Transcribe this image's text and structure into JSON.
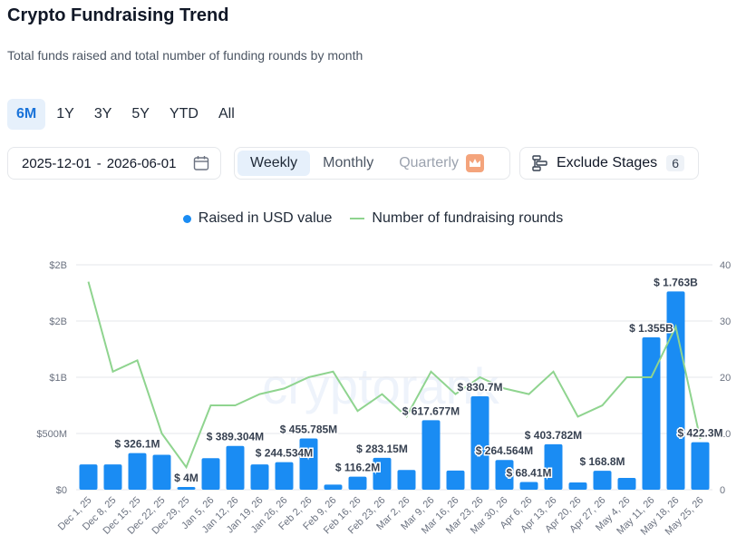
{
  "header": {
    "title": "Crypto Fundraising Trend",
    "subtitle": "Total funds raised and total number of funding rounds by month"
  },
  "ranges": [
    {
      "label": "6M",
      "active": true
    },
    {
      "label": "1Y",
      "active": false
    },
    {
      "label": "3Y",
      "active": false
    },
    {
      "label": "5Y",
      "active": false
    },
    {
      "label": "YTD",
      "active": false
    },
    {
      "label": "All",
      "active": false
    }
  ],
  "date_range": {
    "start": "2025-12-01",
    "sep": "-",
    "end": "2026-06-01",
    "icon": "calendar-icon"
  },
  "period": {
    "weekly": "Weekly",
    "monthly": "Monthly",
    "quarterly": "Quarterly",
    "selected": "Weekly",
    "premium_icon": "crown-icon"
  },
  "exclude": {
    "label": "Exclude Stages",
    "count": "6",
    "icon": "filter-stages-icon"
  },
  "watermark": "cryptorank",
  "colors": {
    "bars": "#1a8cf3",
    "line": "#8fd48f",
    "active_tab": "#e6f0fb",
    "premium": "#f4a47c"
  },
  "chart_data": {
    "type": "bar",
    "legend": [
      "Raised in USD value",
      "Number of fundraising rounds"
    ],
    "legend_position": "top-center",
    "categories": [
      "Dec 1, 25",
      "Dec 8, 25",
      "Dec 15, 25",
      "Dec 22, 25",
      "Dec 29, 25",
      "Jan 5, 26",
      "Jan 12, 26",
      "Jan 19, 26",
      "Jan 26, 26",
      "Feb 2, 26",
      "Feb 9, 26",
      "Feb 16, 26",
      "Feb 23, 26",
      "Mar 2, 26",
      "Mar 9, 26",
      "Mar 16, 26",
      "Mar 23, 26",
      "Mar 30, 26",
      "Apr 6, 26",
      "Apr 13, 26",
      "Apr 20, 26",
      "Apr 27, 26",
      "May 4, 26",
      "May 11, 26",
      "May 18, 26",
      "May 25, 26"
    ],
    "series": [
      {
        "name": "Raised in USD value",
        "type": "bar",
        "axis": "left",
        "values": [
          225,
          225,
          326.1,
          310,
          4,
          280,
          389.304,
          225,
          244.534,
          455.785,
          45,
          116.2,
          283.15,
          175,
          617.677,
          170,
          830.7,
          264.564,
          68.41,
          403.782,
          65,
          168.8,
          105,
          1355,
          1763,
          422.3
        ],
        "labels": [
          "",
          "",
          "$ 326.1M",
          "",
          "$ 4M",
          "",
          "$ 389.304M",
          "",
          "$ 244.534M",
          "$ 455.785M",
          "",
          "$ 116.2M",
          "$ 283.15M",
          "",
          "$ 617.677M",
          "",
          "$ 830.7M",
          "$ 264.564M",
          "$ 68.41M",
          "$ 403.782M",
          "",
          "$ 168.8M",
          "",
          "$ 1.355B",
          "$ 1.763B",
          "$ 422.3M"
        ]
      },
      {
        "name": "Number of fundraising rounds",
        "type": "line",
        "axis": "right",
        "values": [
          37,
          21,
          23,
          10,
          4,
          15,
          15,
          17,
          18,
          20,
          21,
          14,
          17,
          13,
          21,
          17,
          20,
          18,
          17,
          21,
          13,
          15,
          20,
          20,
          29,
          9
        ]
      }
    ],
    "y_left": {
      "ticks": [
        "$0",
        "$500M",
        "$1B",
        "$2B",
        "$2B"
      ],
      "ylim": [
        0,
        2000
      ]
    },
    "y_right": {
      "ticks": [
        "0",
        "10",
        "20",
        "30",
        "40"
      ],
      "ylim": [
        0,
        40
      ]
    },
    "grid": true
  }
}
